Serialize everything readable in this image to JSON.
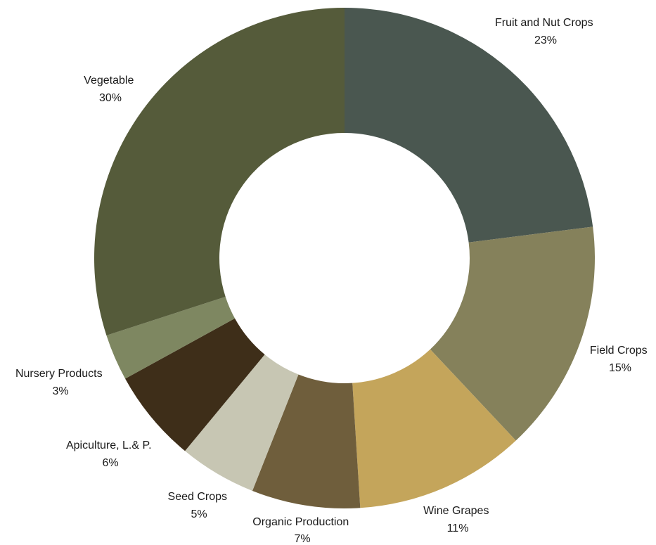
{
  "chart_data": {
    "type": "pie",
    "style": "donut",
    "title": "",
    "legend": "none",
    "start_angle": "top, clockwise",
    "slices": [
      {
        "label": "Fruit and Nut Crops",
        "value": 23,
        "pct_label": "23%",
        "color": "#4a5750"
      },
      {
        "label": "Field Crops",
        "value": 15,
        "pct_label": "15%",
        "color": "#85815b"
      },
      {
        "label": "Wine Grapes",
        "value": 11,
        "pct_label": "11%",
        "color": "#c4a55b"
      },
      {
        "label": "Organic Production",
        "value": 7,
        "pct_label": "7%",
        "color": "#6f5e3c"
      },
      {
        "label": "Seed Crops",
        "value": 5,
        "pct_label": "5%",
        "color": "#c7c6b3"
      },
      {
        "label": "Apiculture, L.& P.",
        "value": 6,
        "pct_label": "6%",
        "color": "#3e2e19"
      },
      {
        "label": "Nursery Products",
        "value": 3,
        "pct_label": "3%",
        "color": "#7e8761"
      },
      {
        "label": "Vegetable",
        "value": 30,
        "pct_label": "30%",
        "color": "#555b3a"
      }
    ]
  }
}
